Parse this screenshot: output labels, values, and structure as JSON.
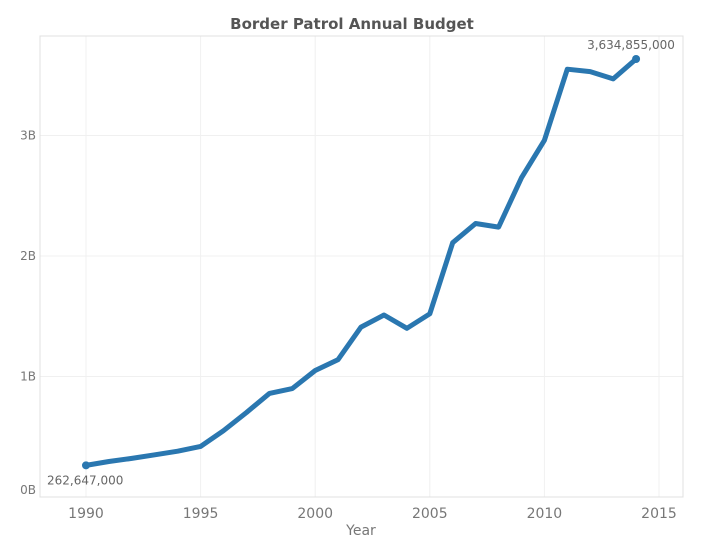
{
  "chart_data": {
    "type": "line",
    "title": "Border Patrol Annual Budget",
    "xlabel": "Year",
    "ylabel": "",
    "xlim": [
      1988,
      2016
    ],
    "ylim": [
      0,
      3900000000
    ],
    "x_ticks": [
      1990,
      1995,
      2000,
      2005,
      2010,
      2015
    ],
    "x_tick_labels": [
      "1990",
      "1995",
      "2000",
      "2005",
      "2010",
      "2015"
    ],
    "y_ticks": [
      0,
      1000000000,
      2000000000,
      3000000000
    ],
    "y_tick_labels": [
      "0B",
      "1B",
      "2B",
      "3B"
    ],
    "grid": true,
    "color": "#2a77b0",
    "series": [
      {
        "x": [
          1990,
          1991,
          1992,
          1993,
          1994,
          1995,
          1996,
          1997,
          1998,
          1999,
          2000,
          2001,
          2002,
          2003,
          2004,
          2005,
          2006,
          2007,
          2008,
          2009,
          2010,
          2011,
          2012,
          2013,
          2014
        ],
        "values": [
          262647000,
          295000000,
          320000000,
          350000000,
          380000000,
          420000000,
          550000000,
          700000000,
          860000000,
          900000000,
          1050000000,
          1140000000,
          1410000000,
          1510000000,
          1400000000,
          1520000000,
          2110000000,
          2270000000,
          2240000000,
          2650000000,
          2960000000,
          3550000000,
          3530000000,
          3470000000,
          3634855000
        ]
      }
    ],
    "annotations": [
      {
        "x": 1990,
        "y": 262647000,
        "label": "262,647,000"
      },
      {
        "x": 2014,
        "y": 3634855000,
        "label": "3,634,855,000"
      }
    ]
  }
}
